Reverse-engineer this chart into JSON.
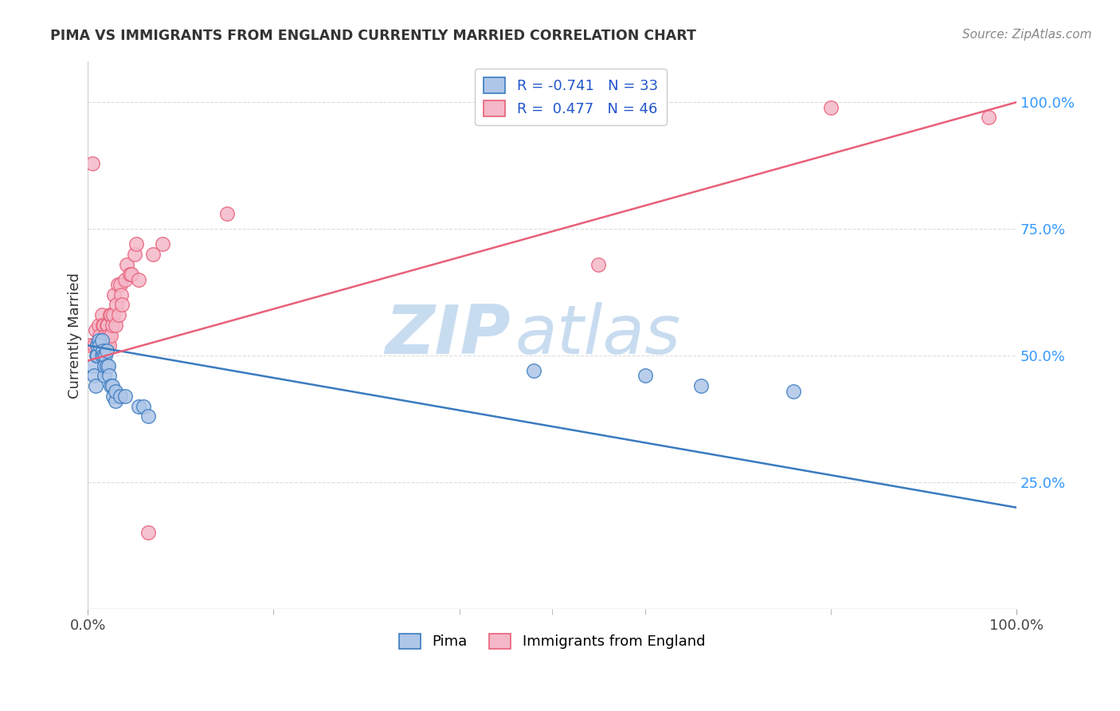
{
  "title": "PIMA VS IMMIGRANTS FROM ENGLAND CURRENTLY MARRIED CORRELATION CHART",
  "source": "Source: ZipAtlas.com",
  "ylabel": "Currently Married",
  "watermark_zip": "ZIP",
  "watermark_atlas": "atlas",
  "pima_color": "#aec6e8",
  "england_color": "#f4b8c8",
  "pima_line_color": "#3a7bbf",
  "england_line_color": "#e8607a",
  "pima_R": -0.741,
  "pima_N": 33,
  "england_R": 0.477,
  "england_N": 46,
  "pima_points_x": [
    0.005,
    0.007,
    0.008,
    0.009,
    0.01,
    0.01,
    0.012,
    0.013,
    0.015,
    0.015,
    0.016,
    0.017,
    0.018,
    0.018,
    0.019,
    0.02,
    0.02,
    0.022,
    0.023,
    0.025,
    0.026,
    0.027,
    0.03,
    0.03,
    0.035,
    0.04,
    0.055,
    0.06,
    0.065,
    0.48,
    0.6,
    0.66,
    0.76
  ],
  "pima_points_y": [
    0.48,
    0.46,
    0.44,
    0.5,
    0.52,
    0.5,
    0.53,
    0.52,
    0.5,
    0.53,
    0.51,
    0.5,
    0.46,
    0.48,
    0.5,
    0.48,
    0.51,
    0.48,
    0.46,
    0.44,
    0.44,
    0.42,
    0.41,
    0.43,
    0.42,
    0.42,
    0.4,
    0.4,
    0.38,
    0.47,
    0.46,
    0.44,
    0.43
  ],
  "england_points_x": [
    0.002,
    0.005,
    0.007,
    0.008,
    0.01,
    0.01,
    0.012,
    0.013,
    0.014,
    0.015,
    0.016,
    0.017,
    0.018,
    0.019,
    0.02,
    0.02,
    0.021,
    0.022,
    0.023,
    0.024,
    0.025,
    0.025,
    0.026,
    0.027,
    0.028,
    0.03,
    0.031,
    0.032,
    0.033,
    0.035,
    0.036,
    0.037,
    0.04,
    0.042,
    0.045,
    0.047,
    0.05,
    0.052,
    0.055,
    0.065,
    0.07,
    0.08,
    0.15,
    0.55,
    0.8,
    0.97
  ],
  "england_points_y": [
    0.52,
    0.88,
    0.52,
    0.55,
    0.5,
    0.52,
    0.56,
    0.54,
    0.52,
    0.58,
    0.56,
    0.56,
    0.52,
    0.54,
    0.52,
    0.56,
    0.56,
    0.54,
    0.52,
    0.58,
    0.54,
    0.58,
    0.56,
    0.58,
    0.62,
    0.56,
    0.6,
    0.64,
    0.58,
    0.64,
    0.62,
    0.6,
    0.65,
    0.68,
    0.66,
    0.66,
    0.7,
    0.72,
    0.65,
    0.15,
    0.7,
    0.72,
    0.78,
    0.68,
    0.99,
    0.97
  ],
  "pima_trendline_x": [
    0.0,
    1.0
  ],
  "pima_trendline_y": [
    0.52,
    0.2
  ],
  "england_trendline_x": [
    0.0,
    1.0
  ],
  "england_trendline_y": [
    0.49,
    1.0
  ],
  "xlim": [
    0.0,
    1.0
  ],
  "ylim_min": 0.0,
  "ylim_max": 1.08,
  "yticks": [
    0.0,
    0.25,
    0.5,
    0.75,
    1.0
  ],
  "ytick_labels_right": [
    "",
    "25.0%",
    "50.0%",
    "75.0%",
    "100.0%"
  ],
  "xtick_labels": [
    "0.0%",
    "100.0%"
  ],
  "legend_text_color": "#2255cc",
  "right_tick_color": "#3399ff",
  "title_color": "#333333",
  "source_color": "#888888",
  "grid_color": "#dddddd",
  "bottom_line_color": "#cccccc",
  "ylabel_color": "#333333"
}
